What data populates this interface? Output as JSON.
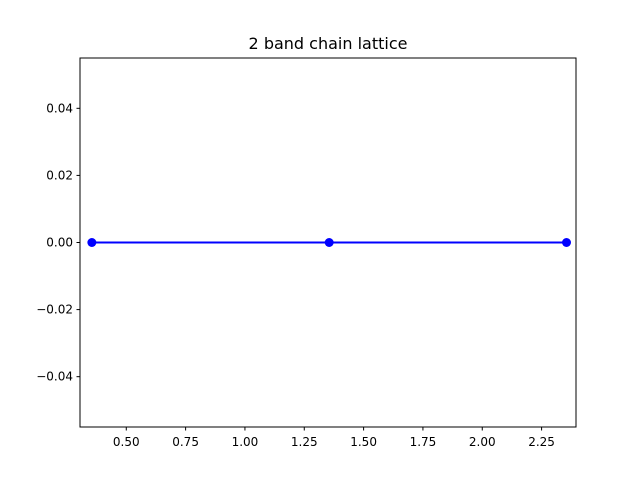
{
  "chart_data": {
    "type": "line",
    "title": "2 band chain lattice",
    "xlabel": "",
    "ylabel": "",
    "xlim": [
      0.305,
      2.395
    ],
    "ylim": [
      -0.055,
      0.055
    ],
    "x_ticks": [
      0.5,
      0.75,
      1.0,
      1.25,
      1.5,
      1.75,
      2.0,
      2.25
    ],
    "x_tick_labels": [
      "0.50",
      "0.75",
      "1.00",
      "1.25",
      "1.50",
      "1.75",
      "2.00",
      "2.25"
    ],
    "y_ticks": [
      -0.04,
      -0.02,
      0.0,
      0.02,
      0.04
    ],
    "y_tick_labels": [
      "−0.04",
      "−0.02",
      "0.00",
      "0.02",
      "0.04"
    ],
    "grid": false,
    "series": [
      {
        "color": "#0000ff",
        "marker": "circle",
        "x": [
          0.355,
          1.355,
          2.355
        ],
        "y": [
          0.0,
          0.0,
          0.0
        ]
      }
    ]
  }
}
